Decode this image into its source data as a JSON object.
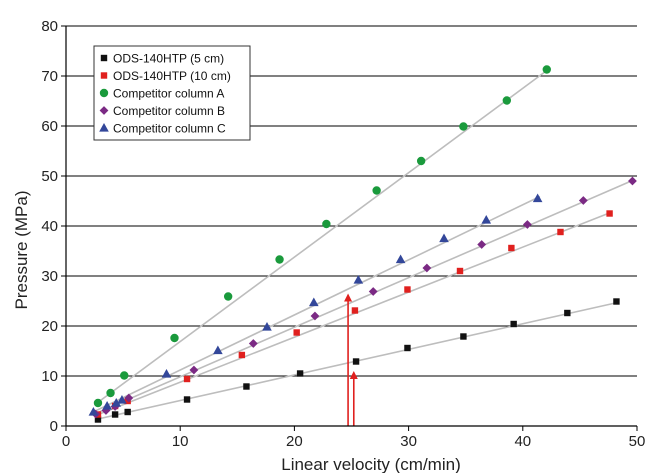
{
  "chart_data": {
    "type": "scatter",
    "title": "",
    "xlabel": "Linear velocity (cm/min)",
    "ylabel": "Pressure (MPa)",
    "xlim": [
      0,
      50
    ],
    "ylim": [
      0,
      80
    ],
    "xticks": [
      0,
      10,
      20,
      30,
      40,
      50
    ],
    "yticks": [
      0,
      10,
      20,
      30,
      40,
      50,
      60,
      70,
      80
    ],
    "grid": "horizontal",
    "legend": "top-left",
    "series": [
      {
        "name": "ODS-140HTP (5 cm)",
        "marker": "square",
        "color": "#111111",
        "x": [
          2.8,
          4.3,
          5.4,
          10.6,
          15.8,
          20.5,
          25.4,
          29.9,
          34.8,
          39.2,
          43.9,
          48.2
        ],
        "y": [
          1.3,
          2.3,
          2.8,
          5.3,
          7.9,
          10.5,
          12.9,
          15.6,
          17.9,
          20.4,
          22.6,
          24.9
        ],
        "fit": [
          [
            2.6,
            1.3
          ],
          [
            48.3,
            24.7
          ]
        ]
      },
      {
        "name": "ODS-140HTP (10 cm)",
        "marker": "square",
        "color": "#e0201e",
        "x": [
          2.8,
          4.3,
          5.4,
          10.6,
          15.4,
          20.2,
          25.3,
          29.9,
          34.5,
          39.0,
          43.3,
          47.6
        ],
        "y": [
          2.3,
          4.0,
          5.0,
          9.4,
          14.2,
          18.7,
          23.1,
          27.3,
          31.0,
          35.6,
          38.8,
          42.5
        ],
        "fit": [
          [
            2.6,
            2.1
          ],
          [
            47.8,
            42.8
          ]
        ]
      },
      {
        "name": "Competitor column A",
        "marker": "circle",
        "color": "#1a9a3c",
        "x": [
          2.8,
          3.9,
          5.1,
          9.5,
          14.2,
          18.7,
          22.8,
          27.2,
          31.1,
          34.8,
          38.6,
          42.1
        ],
        "y": [
          4.6,
          6.6,
          10.1,
          17.6,
          25.9,
          33.3,
          40.4,
          47.1,
          53.0,
          59.9,
          65.1,
          71.3
        ],
        "fit": [
          [
            2.6,
            4.4
          ],
          [
            42.4,
            71.6
          ]
        ]
      },
      {
        "name": "Competitor column B",
        "marker": "diamond",
        "color": "#7b2a84",
        "x": [
          2.6,
          3.5,
          4.3,
          5.5,
          11.2,
          16.4,
          21.8,
          26.9,
          31.6,
          36.4,
          40.4,
          45.3,
          49.6
        ],
        "y": [
          2.4,
          3.1,
          3.9,
          5.6,
          11.2,
          16.5,
          22.0,
          26.9,
          31.6,
          36.3,
          40.3,
          45.1,
          49.0
        ],
        "fit": [
          [
            2.4,
            2.3
          ],
          [
            49.8,
            49.3
          ]
        ]
      },
      {
        "name": "Competitor column C",
        "marker": "triangle",
        "color": "#33479a",
        "x": [
          2.4,
          3.6,
          4.4,
          4.9,
          8.8,
          13.3,
          17.6,
          21.7,
          25.6,
          29.3,
          33.1,
          36.8,
          41.3
        ],
        "y": [
          2.8,
          4.0,
          4.6,
          5.2,
          10.4,
          15.1,
          19.8,
          24.7,
          29.2,
          33.3,
          37.5,
          41.2,
          45.5
        ],
        "fit": [
          [
            2.2,
            2.6
          ],
          [
            41.5,
            45.9
          ]
        ]
      }
    ],
    "annotations": [
      {
        "type": "arrow",
        "color": "#e0201e",
        "x": 24.7,
        "y_from": 0,
        "y_to": 26.5
      },
      {
        "type": "arrow",
        "color": "#e0201e",
        "x": 25.2,
        "y_from": 0,
        "y_to": 11.0
      }
    ]
  }
}
